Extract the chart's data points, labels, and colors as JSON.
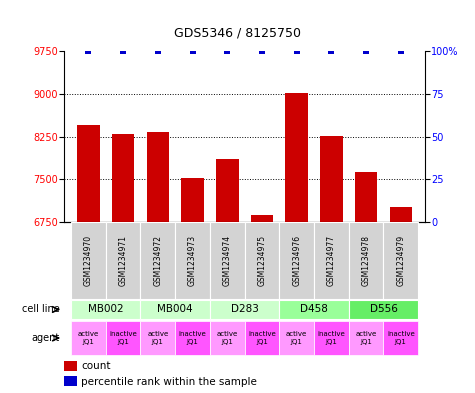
{
  "title": "GDS5346 / 8125750",
  "samples": [
    "GSM1234970",
    "GSM1234971",
    "GSM1234972",
    "GSM1234973",
    "GSM1234974",
    "GSM1234975",
    "GSM1234976",
    "GSM1234977",
    "GSM1234978",
    "GSM1234979"
  ],
  "bar_values": [
    8450,
    8300,
    8330,
    7520,
    7850,
    6880,
    9020,
    8260,
    7620,
    7020
  ],
  "percentile_values": [
    100,
    100,
    100,
    100,
    100,
    100,
    100,
    100,
    100,
    100
  ],
  "bar_color": "#cc0000",
  "percentile_color": "#0000cc",
  "ylim_left": [
    6750,
    9750
  ],
  "yticks_left": [
    6750,
    7500,
    8250,
    9000,
    9750
  ],
  "ylim_right": [
    0,
    100
  ],
  "yticks_right": [
    0,
    25,
    50,
    75,
    100
  ],
  "ytick_labels_right": [
    "0",
    "25",
    "50",
    "75",
    "100%"
  ],
  "grid_lines": [
    7500,
    8250,
    9000
  ],
  "cell_lines": [
    {
      "label": "MB002",
      "cols": [
        0,
        1
      ],
      "color": "#ccffcc"
    },
    {
      "label": "MB004",
      "cols": [
        2,
        3
      ],
      "color": "#ccffcc"
    },
    {
      "label": "D283",
      "cols": [
        4,
        5
      ],
      "color": "#ccffcc"
    },
    {
      "label": "D458",
      "cols": [
        6,
        7
      ],
      "color": "#99ff99"
    },
    {
      "label": "D556",
      "cols": [
        8,
        9
      ],
      "color": "#66ee66"
    }
  ],
  "agents": [
    {
      "label": "active\nJQ1",
      "color": "#ff99ff"
    },
    {
      "label": "inactive\nJQ1",
      "color": "#ff55ff"
    },
    {
      "label": "active\nJQ1",
      "color": "#ff99ff"
    },
    {
      "label": "inactive\nJQ1",
      "color": "#ff55ff"
    },
    {
      "label": "active\nJQ1",
      "color": "#ff99ff"
    },
    {
      "label": "inactive\nJQ1",
      "color": "#ff55ff"
    },
    {
      "label": "active\nJQ1",
      "color": "#ff99ff"
    },
    {
      "label": "inactive\nJQ1",
      "color": "#ff55ff"
    },
    {
      "label": "active\nJQ1",
      "color": "#ff99ff"
    },
    {
      "label": "inactive\nJQ1",
      "color": "#ff55ff"
    }
  ],
  "legend_count_color": "#cc0000",
  "legend_percentile_color": "#0000cc",
  "cell_line_label": "cell line",
  "agent_label": "agent",
  "legend_count_text": "count",
  "legend_percentile_text": "percentile rank within the sample",
  "sample_box_color": "#d3d3d3",
  "n_cols": 10
}
